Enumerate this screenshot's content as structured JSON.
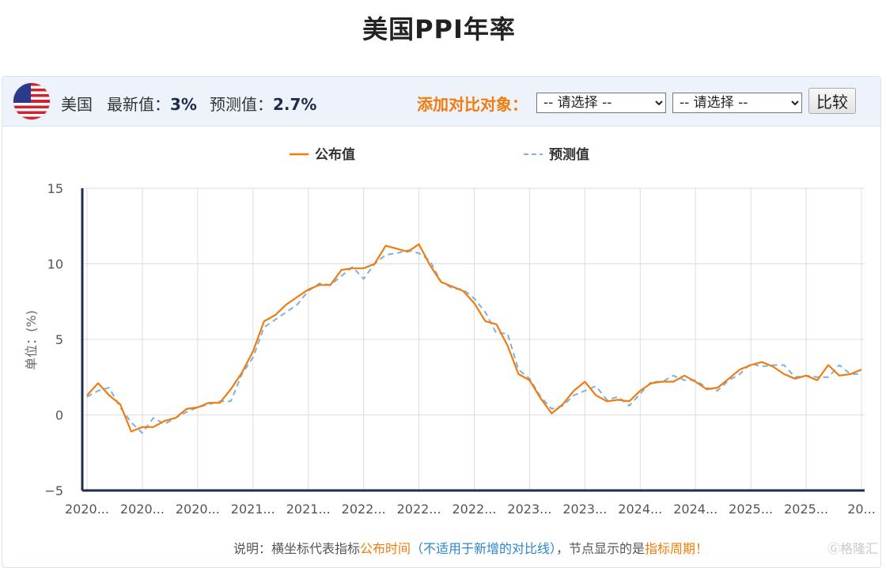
{
  "page": {
    "title": "美国PPI年率"
  },
  "toolbar": {
    "country": "美国",
    "latest_label": "最新值：",
    "latest_value": "3%",
    "forecast_label": "预测值：",
    "forecast_value": "2.7%",
    "add_compare_label": "添加对比对象：",
    "select_1": "-- 请选择 --",
    "select_2": "-- 请选择 --",
    "compare_button": "比较",
    "flag_icon": "us-flag-icon"
  },
  "colors": {
    "actual": "#f07c0e",
    "forecast": "#7fb0e0",
    "axis": "#1f2d4d",
    "grid": "#dddddd",
    "accent": "#f07c0e",
    "link": "#2a86c9"
  },
  "chart_data": {
    "type": "line",
    "ylabel": "单位：(%)",
    "ylim": [
      -5,
      15
    ],
    "yticks": [
      "15",
      "10",
      "5",
      "0",
      "−5"
    ],
    "xtick_labels": [
      "2020...",
      "2020...",
      "2020...",
      "2021...",
      "2021...",
      "2022...",
      "2022...",
      "2022...",
      "2023...",
      "2023...",
      "2024...",
      "2024...",
      "2025...",
      "2025...",
      "20..."
    ],
    "grid": true,
    "legend_position": "top",
    "series": [
      {
        "name": "公布值",
        "values": [
          1.3,
          2.1,
          1.3,
          0.7,
          -1.1,
          -0.8,
          -0.8,
          -0.4,
          -0.2,
          0.4,
          0.5,
          0.8,
          0.8,
          1.7,
          2.8,
          4.2,
          6.2,
          6.6,
          7.3,
          7.8,
          8.3,
          8.6,
          8.6,
          9.6,
          9.7,
          9.7,
          10.0,
          11.2,
          11.0,
          10.8,
          11.3,
          9.9,
          8.8,
          8.5,
          8.2,
          7.4,
          6.2,
          6.0,
          4.6,
          2.7,
          2.3,
          1.1,
          0.1,
          0.7,
          1.6,
          2.2,
          1.3,
          0.9,
          1.0,
          0.9,
          1.6,
          2.1,
          2.2,
          2.2,
          2.6,
          2.2,
          1.7,
          1.8,
          2.4,
          3.0,
          3.3,
          3.5,
          3.2,
          2.7,
          2.4,
          2.6,
          2.3,
          3.3,
          2.6,
          2.7,
          3.0
        ]
      },
      {
        "name": "预测值",
        "values": [
          1.2,
          1.6,
          1.8,
          0.5,
          -0.5,
          -1.2,
          -0.2,
          -0.6,
          -0.2,
          0.2,
          0.5,
          0.7,
          0.9,
          0.9,
          2.7,
          3.8,
          5.8,
          6.3,
          6.8,
          7.3,
          8.2,
          8.7,
          8.6,
          9.2,
          9.8,
          9.0,
          10.0,
          10.6,
          10.7,
          10.9,
          10.7,
          10.2,
          8.8,
          8.4,
          8.3,
          7.7,
          6.8,
          5.4,
          5.4,
          3.0,
          2.4,
          1.2,
          0.4,
          0.6,
          1.3,
          1.6,
          1.9,
          1.0,
          1.2,
          0.6,
          1.4,
          2.2,
          2.2,
          2.6,
          2.3,
          2.3,
          1.8,
          1.6,
          2.3,
          2.7,
          3.4,
          3.2,
          3.3,
          3.3,
          2.5,
          2.6,
          2.5,
          2.5,
          3.3,
          2.7,
          2.7
        ]
      }
    ]
  },
  "footnote": {
    "prefix": "说明：横坐标代表指标",
    "orange_1": "公布时间",
    "blue_part": "（不适用于新增的对比线）",
    "middle": "，节点显示的是",
    "orange_2": "指标周期！"
  },
  "watermark": "Ⓖ格隆汇"
}
